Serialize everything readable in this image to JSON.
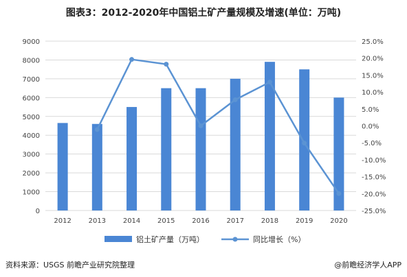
{
  "title": "图表3：2012-2020年中国铝土矿产量规模及增速(单位：万吨)",
  "source": "资料来源：USGS 前瞻产业研究院整理",
  "brand": "@前瞻经济学人APP",
  "colors": {
    "bar": "#4a86d4",
    "line": "#5b93d3",
    "grid": "#d9d9d9"
  },
  "chart_data": {
    "type": "bar",
    "categories": [
      "2012",
      "2013",
      "2014",
      "2015",
      "2016",
      "2017",
      "2018",
      "2019",
      "2020"
    ],
    "series": [
      {
        "name": "铝土矿产量（万吨）",
        "type": "bar",
        "axis": "left",
        "values": [
          4650,
          4600,
          5500,
          6500,
          6500,
          7000,
          7900,
          7500,
          6000
        ]
      },
      {
        "name": "同比增长（%）",
        "type": "line",
        "axis": "right",
        "values": [
          null,
          -1.1,
          19.6,
          18.2,
          0.0,
          7.7,
          12.9,
          -5.1,
          -20.0
        ]
      }
    ],
    "ylim": [
      0,
      9000
    ],
    "yticks": [
      "0",
      "1000",
      "2000",
      "3000",
      "4000",
      "5000",
      "6000",
      "7000",
      "8000",
      "9000"
    ],
    "y2lim": [
      -25,
      25
    ],
    "y2ticks": [
      "-25.0%",
      "-20.0%",
      "-15.0%",
      "-10.0%",
      "-5.0%",
      "0.0%",
      "5.0%",
      "10.0%",
      "15.0%",
      "20.0%",
      "25.0%"
    ],
    "legend_position": "bottom",
    "grid": true
  }
}
